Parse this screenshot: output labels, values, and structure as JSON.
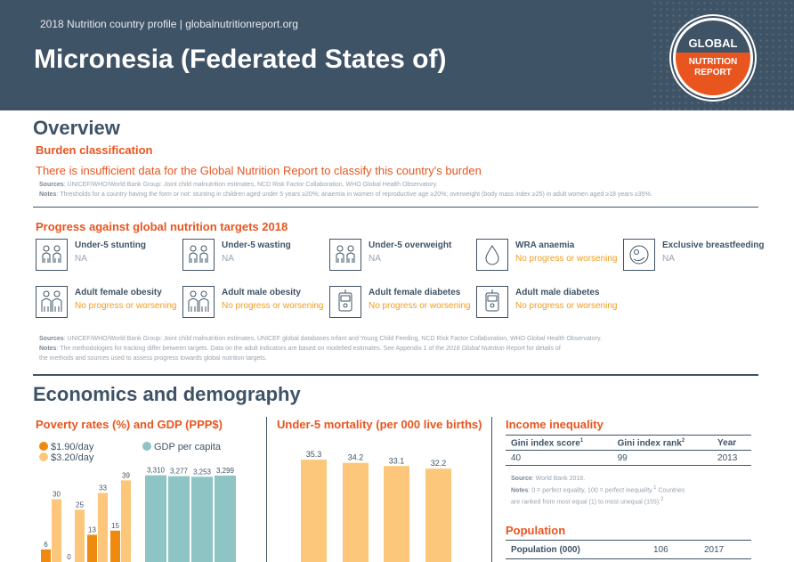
{
  "header": {
    "kicker": "2018 Nutrition country profile  |  globalnutritionreport.org",
    "country": "Micronesia (Federated States of)",
    "logo": {
      "top": "GLOBAL",
      "mid": "NUTRITION",
      "bot": "REPORT"
    }
  },
  "overview": {
    "title": "Overview",
    "burden_heading": "Burden classification",
    "burden_text": "There is insufficient data for the Global Nutrition Report to classify this country's burden",
    "sources_label": "Sources",
    "sources_text": ": UNICEF/WHO/World Bank Group: Joint child malnutrition estimates, NCD Risk Factor Collaboration, WHO Global Health Observatory.",
    "notes_label": "Notes",
    "notes_text": ": Thresholds for a country having the form or not: stunting in children aged under 5 years ≥20%; anaemia in women of reproductive age ≥20%; overweight (body mass index ≥25) in adult women aged ≥18 years ≥35%."
  },
  "progress": {
    "heading": "Progress against global nutrition targets 2018",
    "targets": [
      {
        "label": "Under-5 stunting",
        "status": "NA",
        "icon": "children-icon"
      },
      {
        "label": "Under-5 wasting",
        "status": "NA",
        "icon": "children-icon"
      },
      {
        "label": "Under-5 overweight",
        "status": "NA",
        "icon": "children-icon"
      },
      {
        "label": "WRA anaemia",
        "status": "No progress or worsening",
        "icon": "blood-drop-icon"
      },
      {
        "label": "Exclusive breastfeeding",
        "status": "NA",
        "icon": "breastfeeding-icon"
      },
      {
        "label": "Adult female obesity",
        "status": "No progress or worsening",
        "icon": "adults-icon"
      },
      {
        "label": "Adult male obesity",
        "status": "No progress or worsening",
        "icon": "adults-icon"
      },
      {
        "label": "Adult female diabetes",
        "status": "No progress or worsening",
        "icon": "glucose-meter-icon"
      },
      {
        "label": "Adult male diabetes",
        "status": "No progress or worsening",
        "icon": "glucose-meter-icon"
      }
    ],
    "sources_label": "Sources",
    "sources_text": ": UNICEF/WHO/World Bank Group: Joint child malnutrition estimates, UNICEF global databases Infant and Young Child Feeding, NCD Risk Factor Collaboration, WHO Global Health Observatory.",
    "notes_label": "Notes",
    "notes_text_1": ": The methodologies for tracking differ between targets. Data on the adult indicators are based on modelled estimates. See Appendix 1 of the ",
    "notes_italic": "2018 Global Nutrition Report",
    "notes_text_2": " for details of",
    "notes_text_3": "the methods and sources used to assess progress towards global nutrition targets."
  },
  "economics": {
    "title": "Economics and demography",
    "poverty_heading": "Poverty rates (%) and GDP (PPP$)",
    "u5m_heading": "Under-5 mortality (per 000 live births)",
    "income_heading": "Income inequality",
    "population_heading": "Population"
  },
  "colors": {
    "navy": "#3f5366",
    "orange": "#e8551f",
    "dark_orange": "#ef8a10",
    "light_orange": "#fcc77a",
    "teal": "#8ec4c4"
  },
  "chart_data": [
    {
      "type": "bar",
      "title": "Poverty rates (%) and GDP (PPP$)",
      "series": [
        {
          "name": "$1.90/day",
          "values": [
            6,
            0,
            13,
            15
          ]
        },
        {
          "name": "$3.20/day",
          "values": [
            30,
            25,
            33,
            39
          ]
        }
      ],
      "gdp": {
        "name": "GDP per capita",
        "values": [
          3310,
          3277,
          3253,
          3299
        ],
        "labels": [
          "3,310",
          "3,277",
          "3,253",
          "3,299"
        ]
      },
      "poverty_labels": {
        "low": [
          "6",
          "0",
          "13",
          "15"
        ],
        "high": [
          "30",
          "25",
          "33",
          "39"
        ]
      },
      "ylim": [
        0,
        45
      ]
    },
    {
      "type": "bar",
      "title": "Under-5 mortality (per 000 live births)",
      "values": [
        35.3,
        34.2,
        33.1,
        32.2
      ],
      "labels": [
        "35.3",
        "34.2",
        "33.1",
        "32.2"
      ]
    }
  ],
  "income_inequality": {
    "headers": [
      "Gini index score",
      "Gini index rank",
      "Year"
    ],
    "header_sups": [
      "1",
      "2",
      ""
    ],
    "row": [
      "40",
      "99",
      "2013"
    ],
    "source_label": "Source",
    "source_text": ": World Bank 2018.",
    "notes_label": "Notes",
    "notes_text_1": ": 0 = perfect equality, 100 = perfect inequality.",
    "notes_sup1": "1",
    "notes_text_2": " Countries",
    "notes_text_3": "are ranked from most equal (1) to most unequal (155).",
    "notes_sup2": "2"
  },
  "population": {
    "label": "Population (000)",
    "value": "106",
    "year": "2017"
  }
}
